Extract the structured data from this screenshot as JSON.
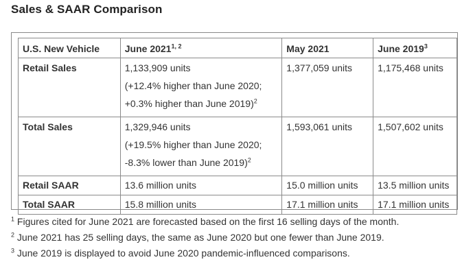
{
  "title": "Sales & SAAR Comparison",
  "table": {
    "headers": {
      "vehicle": "U.S. New Vehicle",
      "june2021": "June 2021",
      "june2021_sup": "1, 2",
      "may2021": "May 2021",
      "june2019": "June 2019",
      "june2019_sup": "3"
    },
    "rows": [
      {
        "label": "Retail Sales",
        "june2021_value": "1,133,909 units",
        "june2021_note1": "(+12.4% higher than June 2020;",
        "june2021_note2": "+0.3% higher than June 2019)",
        "june2021_note_sup": "2",
        "may2021": "1,377,059 units",
        "june2019": "1,175,468 units"
      },
      {
        "label": "Total Sales",
        "june2021_value": "1,329,946 units",
        "june2021_note1": "(+19.5% higher than June 2020;",
        "june2021_note2": "-8.3% lower than June 2019)",
        "june2021_note_sup": "2",
        "may2021": "1,593,061 units",
        "june2019": "1,507,602 units"
      },
      {
        "label": "Retail SAAR",
        "june2021_value": "13.6 million units",
        "may2021": "15.0 million units",
        "june2019": "13.5 million units"
      },
      {
        "label": "Total SAAR",
        "june2021_value": "15.8 million units",
        "may2021": "17.1 million units",
        "june2019": "17.1 million units"
      }
    ]
  },
  "footnotes": [
    {
      "mark": "1",
      "text": " Figures cited for June 2021 are forecasted based on the first 16 selling days of the month."
    },
    {
      "mark": "2",
      "text": " June 2021 has 25 selling days, the same as June 2020 but one fewer than June 2019."
    },
    {
      "mark": "3",
      "text": " June 2019 is displayed to avoid June 2020 pandemic-influenced comparisons."
    }
  ]
}
